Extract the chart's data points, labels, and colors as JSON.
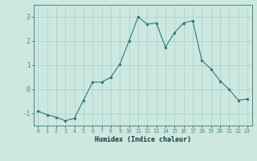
{
  "x": [
    0,
    1,
    2,
    3,
    4,
    5,
    6,
    7,
    8,
    9,
    10,
    11,
    12,
    13,
    14,
    15,
    16,
    17,
    18,
    19,
    20,
    21,
    22,
    23
  ],
  "y": [
    -0.9,
    -1.05,
    -1.15,
    -1.3,
    -1.2,
    -0.45,
    0.3,
    0.3,
    0.5,
    1.05,
    2.0,
    3.0,
    2.7,
    2.75,
    1.75,
    2.35,
    2.75,
    2.85,
    1.2,
    0.85,
    0.35,
    0.0,
    -0.45,
    -0.4
  ],
  "xlabel": "Humidex (Indice chaleur)",
  "ylim": [
    -1.5,
    3.5
  ],
  "xlim": [
    -0.5,
    23.5
  ],
  "yticks": [
    -1,
    0,
    1,
    2,
    3
  ],
  "xticks": [
    0,
    1,
    2,
    3,
    4,
    5,
    6,
    7,
    8,
    9,
    10,
    11,
    12,
    13,
    14,
    15,
    16,
    17,
    18,
    19,
    20,
    21,
    22,
    23
  ],
  "line_color": "#2d7d6e",
  "marker_color": "#2d7d6e",
  "bg_color": "#cce8e0",
  "grid_color": "#aacfca",
  "tick_label_color": "#2d6b5e",
  "xlabel_color": "#1a3a36",
  "axis_color": "#4a8a7a"
}
